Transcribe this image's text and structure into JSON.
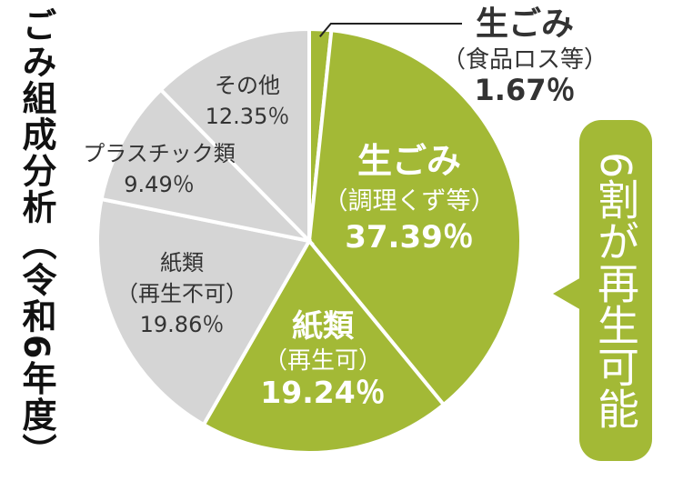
{
  "title": "ごみ組成分析（令和6年度）",
  "callout": "6割が再生可能",
  "colors": {
    "green": "#a3b936",
    "gray": "#d5d5d5",
    "text_dark": "#333333",
    "text_white": "#ffffff"
  },
  "chart_data": {
    "type": "pie",
    "title": "ごみ組成分析（令和6年度）",
    "unit": "%",
    "start_angle_deg": 0,
    "direction": "clockwise",
    "slices": [
      {
        "label": "生ごみ",
        "sub": "（食品ロス等）",
        "value": 1.67,
        "display": "1.67％",
        "color": "#a3b936",
        "label_position": "outside"
      },
      {
        "label": "生ごみ",
        "sub": "（調理くず等）",
        "value": 37.39,
        "display": "37.39％",
        "color": "#a3b936",
        "label_position": "inside"
      },
      {
        "label": "紙類",
        "sub": "（再生可）",
        "value": 19.24,
        "display": "19.24％",
        "color": "#a3b936",
        "label_position": "inside"
      },
      {
        "label": "紙類",
        "sub": "（再生不可）",
        "value": 19.86,
        "display": "19.86％",
        "color": "#d5d5d5",
        "label_position": "inside"
      },
      {
        "label": "プラスチック類",
        "sub": "",
        "value": 9.49,
        "display": "9.49％",
        "color": "#d5d5d5",
        "label_position": "inside"
      },
      {
        "label": "その他",
        "sub": "",
        "value": 12.35,
        "display": "12.35％",
        "color": "#d5d5d5",
        "label_position": "inside"
      }
    ]
  }
}
